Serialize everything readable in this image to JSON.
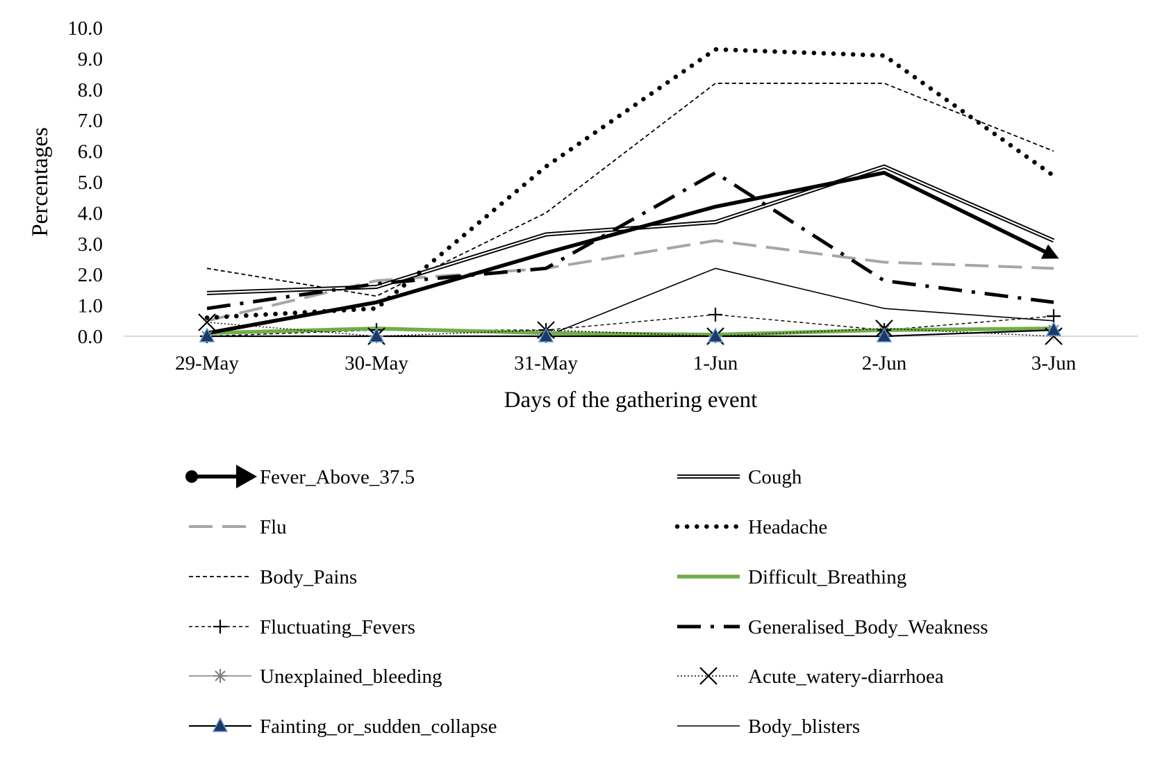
{
  "chart_data": {
    "type": "line",
    "title": "",
    "xlabel": "Days of the gathering event",
    "ylabel": "Percentages",
    "categories": [
      "29-May",
      "30-May",
      "31-May",
      "1-Jun",
      "2-Jun",
      "3-Jun"
    ],
    "ylim": [
      0,
      10
    ],
    "yticks": [
      "0.0",
      "1.0",
      "2.0",
      "3.0",
      "4.0",
      "5.0",
      "6.0",
      "7.0",
      "8.0",
      "9.0",
      "10.0"
    ],
    "grid": false,
    "legend_position": "bottom",
    "series": [
      {
        "name": "Fever_Above_37.5",
        "values": [
          0.1,
          1.1,
          2.7,
          4.2,
          5.3,
          2.6
        ],
        "style": "fever",
        "color": "#000000"
      },
      {
        "name": "Cough",
        "values": [
          1.4,
          1.6,
          3.3,
          3.7,
          5.5,
          3.1
        ],
        "style": "cough",
        "color": "#000000"
      },
      {
        "name": "Flu",
        "values": [
          0.5,
          1.8,
          2.2,
          3.1,
          2.4,
          2.2
        ],
        "style": "flu",
        "color": "#a6a6a6"
      },
      {
        "name": "Headache",
        "values": [
          0.6,
          0.9,
          5.5,
          9.3,
          9.1,
          5.2
        ],
        "style": "headache",
        "color": "#000000"
      },
      {
        "name": "Body_Pains",
        "values": [
          2.2,
          1.3,
          4.0,
          8.2,
          8.2,
          6.0
        ],
        "style": "bodypains",
        "color": "#000000"
      },
      {
        "name": "Difficult_Breathing",
        "values": [
          0.1,
          0.25,
          0.1,
          0.05,
          0.2,
          0.25
        ],
        "style": "breathing",
        "color": "#70ad47"
      },
      {
        "name": "Fluctuating_Fevers",
        "values": [
          0.0,
          0.2,
          0.2,
          0.7,
          0.2,
          0.65
        ],
        "style": "fluctuating",
        "color": "#000000"
      },
      {
        "name": "Generalised_Body_Weakness",
        "values": [
          0.9,
          1.7,
          2.2,
          5.3,
          1.8,
          1.1
        ],
        "style": "weakness",
        "color": "#000000"
      },
      {
        "name": "Unexplained_bleeding",
        "values": [
          0.0,
          0.0,
          0.0,
          0.0,
          0.2,
          0.2
        ],
        "style": "bleeding",
        "color": "#7f7f7f"
      },
      {
        "name": "Acute_watery-diarrhoea",
        "values": [
          0.45,
          0.0,
          0.2,
          0.0,
          0.25,
          0.0
        ],
        "style": "diarrhoea",
        "color": "#000000"
      },
      {
        "name": "Fainting_or_sudden_collapse",
        "values": [
          0.0,
          0.0,
          0.0,
          0.0,
          0.0,
          0.2
        ],
        "style": "fainting",
        "color": "#1f3864"
      },
      {
        "name": "Body_blisters",
        "values": [
          0.0,
          0.0,
          0.0,
          2.2,
          0.9,
          0.5
        ],
        "style": "blisters",
        "color": "#000000"
      }
    ]
  }
}
